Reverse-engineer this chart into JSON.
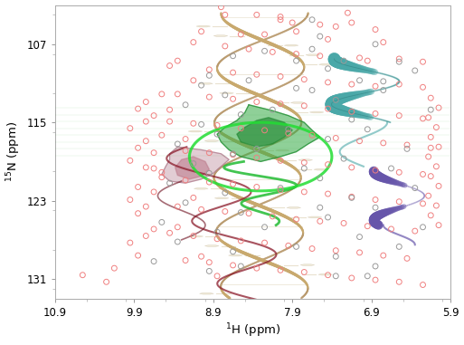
{
  "xlabel": "$^1$H (ppm)",
  "ylabel": "$^{15}$N (ppm)",
  "xlim": [
    10.9,
    5.9
  ],
  "ylim": [
    133,
    103
  ],
  "xticks": [
    10.9,
    9.9,
    8.9,
    7.9,
    6.9,
    5.9
  ],
  "yticks": [
    107,
    115,
    123,
    131
  ],
  "background": "#ffffff",
  "dna_color1": "#c8a96e",
  "dna_color2": "#d4c4a0",
  "dna_color3": "#b8986a",
  "teal_color": "#4aa8a8",
  "green_color": "#33aa44",
  "purple_color": "#6655aa",
  "mauve_color": "#bb8899",
  "maroon_color": "#8b1a2a",
  "pink_peaks": [
    [
      8.35,
      104.0
    ],
    [
      8.05,
      104.5
    ],
    [
      7.55,
      105.0
    ],
    [
      7.15,
      104.8
    ],
    [
      6.85,
      105.5
    ],
    [
      9.15,
      106.8
    ],
    [
      8.75,
      107.2
    ],
    [
      8.45,
      107.5
    ],
    [
      8.15,
      107.8
    ],
    [
      7.85,
      108.0
    ],
    [
      7.55,
      108.2
    ],
    [
      7.05,
      108.4
    ],
    [
      6.95,
      108.7
    ],
    [
      6.55,
      108.5
    ],
    [
      6.25,
      108.8
    ],
    [
      9.45,
      109.2
    ],
    [
      8.95,
      109.6
    ],
    [
      8.65,
      109.9
    ],
    [
      8.35,
      110.1
    ],
    [
      8.05,
      110.3
    ],
    [
      7.75,
      110.6
    ],
    [
      7.45,
      110.9
    ],
    [
      7.15,
      111.1
    ],
    [
      6.85,
      111.3
    ],
    [
      6.55,
      111.1
    ],
    [
      6.25,
      111.4
    ],
    [
      9.35,
      112.1
    ],
    [
      8.95,
      112.4
    ],
    [
      8.65,
      112.6
    ],
    [
      8.35,
      112.9
    ],
    [
      8.05,
      113.1
    ],
    [
      7.75,
      113.3
    ],
    [
      7.45,
      113.6
    ],
    [
      7.15,
      113.9
    ],
    [
      6.85,
      114.1
    ],
    [
      6.55,
      114.3
    ],
    [
      6.25,
      114.6
    ],
    [
      9.45,
      114.9
    ],
    [
      9.15,
      115.1
    ],
    [
      8.85,
      115.3
    ],
    [
      8.55,
      115.6
    ],
    [
      8.25,
      115.8
    ],
    [
      7.95,
      116.1
    ],
    [
      7.65,
      116.3
    ],
    [
      7.35,
      116.6
    ],
    [
      7.05,
      116.9
    ],
    [
      6.75,
      117.1
    ],
    [
      6.45,
      117.3
    ],
    [
      6.15,
      117.6
    ],
    [
      9.25,
      117.9
    ],
    [
      8.95,
      118.1
    ],
    [
      8.65,
      118.3
    ],
    [
      8.35,
      118.6
    ],
    [
      8.05,
      118.9
    ],
    [
      7.75,
      119.1
    ],
    [
      7.45,
      119.3
    ],
    [
      7.15,
      119.6
    ],
    [
      6.85,
      119.9
    ],
    [
      6.55,
      120.1
    ],
    [
      6.25,
      120.3
    ],
    [
      9.55,
      120.6
    ],
    [
      9.25,
      120.9
    ],
    [
      8.95,
      121.1
    ],
    [
      8.65,
      121.3
    ],
    [
      8.35,
      121.6
    ],
    [
      8.05,
      121.9
    ],
    [
      7.75,
      122.1
    ],
    [
      7.45,
      122.3
    ],
    [
      7.15,
      122.6
    ],
    [
      6.85,
      122.9
    ],
    [
      6.55,
      123.1
    ],
    [
      6.25,
      123.3
    ],
    [
      9.35,
      123.6
    ],
    [
      9.05,
      123.9
    ],
    [
      8.75,
      124.1
    ],
    [
      8.45,
      124.3
    ],
    [
      8.15,
      124.6
    ],
    [
      7.85,
      124.9
    ],
    [
      7.55,
      125.1
    ],
    [
      7.25,
      125.3
    ],
    [
      6.95,
      125.6
    ],
    [
      6.65,
      125.9
    ],
    [
      6.35,
      126.1
    ],
    [
      9.45,
      126.3
    ],
    [
      9.15,
      126.6
    ],
    [
      8.85,
      126.9
    ],
    [
      8.55,
      127.1
    ],
    [
      8.25,
      127.3
    ],
    [
      7.95,
      127.6
    ],
    [
      7.65,
      127.9
    ],
    [
      7.35,
      128.1
    ],
    [
      7.05,
      128.3
    ],
    [
      6.75,
      128.6
    ],
    [
      6.45,
      128.9
    ],
    [
      9.25,
      129.1
    ],
    [
      8.95,
      129.3
    ],
    [
      8.65,
      129.6
    ],
    [
      8.35,
      129.9
    ],
    [
      8.05,
      130.1
    ],
    [
      7.75,
      130.3
    ],
    [
      7.45,
      130.6
    ],
    [
      7.15,
      130.9
    ],
    [
      6.85,
      131.1
    ],
    [
      6.55,
      131.3
    ],
    [
      6.25,
      131.6
    ],
    [
      10.25,
      131.3
    ],
    [
      10.55,
      130.6
    ],
    [
      10.15,
      129.9
    ],
    [
      9.85,
      128.6
    ],
    [
      9.95,
      127.3
    ],
    [
      9.75,
      126.6
    ],
    [
      9.65,
      125.9
    ],
    [
      9.85,
      124.3
    ],
    [
      9.75,
      123.6
    ],
    [
      9.95,
      122.9
    ],
    [
      9.65,
      122.1
    ],
    [
      9.85,
      121.6
    ],
    [
      9.55,
      120.1
    ],
    [
      9.75,
      119.6
    ],
    [
      9.95,
      118.9
    ],
    [
      9.65,
      118.1
    ],
    [
      9.85,
      117.6
    ],
    [
      9.75,
      116.9
    ],
    [
      9.55,
      116.3
    ],
    [
      9.95,
      115.6
    ],
    [
      9.75,
      114.9
    ],
    [
      9.65,
      114.3
    ],
    [
      9.85,
      113.6
    ],
    [
      9.75,
      112.9
    ],
    [
      9.55,
      112.1
    ],
    [
      8.75,
      104.0
    ],
    [
      8.05,
      104.2
    ],
    [
      7.35,
      105.2
    ],
    [
      7.85,
      105.7
    ],
    [
      8.55,
      106.0
    ],
    [
      9.05,
      105.7
    ],
    [
      9.35,
      108.7
    ],
    [
      9.15,
      110.7
    ],
    [
      9.45,
      113.7
    ],
    [
      9.25,
      116.7
    ],
    [
      9.65,
      119.7
    ],
    [
      9.15,
      122.7
    ],
    [
      9.35,
      125.7
    ],
    [
      9.05,
      128.7
    ],
    [
      8.85,
      130.7
    ],
    [
      6.15,
      112.5
    ],
    [
      6.05,
      113.5
    ],
    [
      6.18,
      114.5
    ],
    [
      6.08,
      115.5
    ],
    [
      6.15,
      116.5
    ],
    [
      6.05,
      117.5
    ],
    [
      6.18,
      118.5
    ],
    [
      6.08,
      119.5
    ],
    [
      6.15,
      120.5
    ],
    [
      6.05,
      121.5
    ],
    [
      6.18,
      122.5
    ],
    [
      6.08,
      123.5
    ],
    [
      6.15,
      124.5
    ],
    [
      6.05,
      125.5
    ],
    [
      7.2,
      103.8
    ],
    [
      8.8,
      103.2
    ],
    [
      7.45,
      106.5
    ],
    [
      8.25,
      106.0
    ],
    [
      6.75,
      106.8
    ],
    [
      7.9,
      104.8
    ]
  ],
  "gray_peaks": [
    [
      8.25,
      107.7
    ],
    [
      7.85,
      108.7
    ],
    [
      8.45,
      110.7
    ],
    [
      7.65,
      111.7
    ],
    [
      8.15,
      113.7
    ],
    [
      7.95,
      115.7
    ],
    [
      8.35,
      117.7
    ],
    [
      7.75,
      119.7
    ],
    [
      8.05,
      121.7
    ],
    [
      7.55,
      123.7
    ],
    [
      8.25,
      125.7
    ],
    [
      7.85,
      127.7
    ],
    [
      8.55,
      129.7
    ],
    [
      7.35,
      130.7
    ],
    [
      6.85,
      129.7
    ],
    [
      6.55,
      127.7
    ],
    [
      6.25,
      125.7
    ],
    [
      6.85,
      123.7
    ],
    [
      6.35,
      121.7
    ],
    [
      6.65,
      119.7
    ],
    [
      6.45,
      117.7
    ],
    [
      6.95,
      115.7
    ],
    [
      6.15,
      113.7
    ],
    [
      6.75,
      111.7
    ],
    [
      6.35,
      109.7
    ],
    [
      7.25,
      108.7
    ],
    [
      7.05,
      110.7
    ],
    [
      7.35,
      112.7
    ],
    [
      7.15,
      114.7
    ],
    [
      7.45,
      116.7
    ],
    [
      7.25,
      118.7
    ],
    [
      7.55,
      120.7
    ],
    [
      7.15,
      122.7
    ],
    [
      7.45,
      124.7
    ],
    [
      7.05,
      126.7
    ],
    [
      7.35,
      128.7
    ],
    [
      6.95,
      130.7
    ],
    [
      8.65,
      108.2
    ],
    [
      8.95,
      110.2
    ],
    [
      8.75,
      112.2
    ],
    [
      8.55,
      114.2
    ],
    [
      8.85,
      116.2
    ],
    [
      8.65,
      118.2
    ],
    [
      8.95,
      120.2
    ],
    [
      8.75,
      122.2
    ],
    [
      8.55,
      124.2
    ],
    [
      8.85,
      126.2
    ],
    [
      8.65,
      128.2
    ],
    [
      8.95,
      130.2
    ],
    [
      9.05,
      111.2
    ],
    [
      9.25,
      113.2
    ],
    [
      9.05,
      115.2
    ],
    [
      9.35,
      117.2
    ],
    [
      9.15,
      119.2
    ],
    [
      9.45,
      121.2
    ],
    [
      9.25,
      123.2
    ],
    [
      9.55,
      125.2
    ],
    [
      9.35,
      127.2
    ],
    [
      9.65,
      129.2
    ],
    [
      7.65,
      107.5
    ],
    [
      7.45,
      109.5
    ],
    [
      7.85,
      111.5
    ],
    [
      6.55,
      108.8
    ],
    [
      6.75,
      110.8
    ],
    [
      7.65,
      104.5
    ],
    [
      6.85,
      107.0
    ],
    [
      7.55,
      106.2
    ]
  ],
  "peak_color_pink": "#f08080",
  "peak_color_gray": "#999999",
  "peak_size": 18,
  "peak_linewidth": 0.7
}
